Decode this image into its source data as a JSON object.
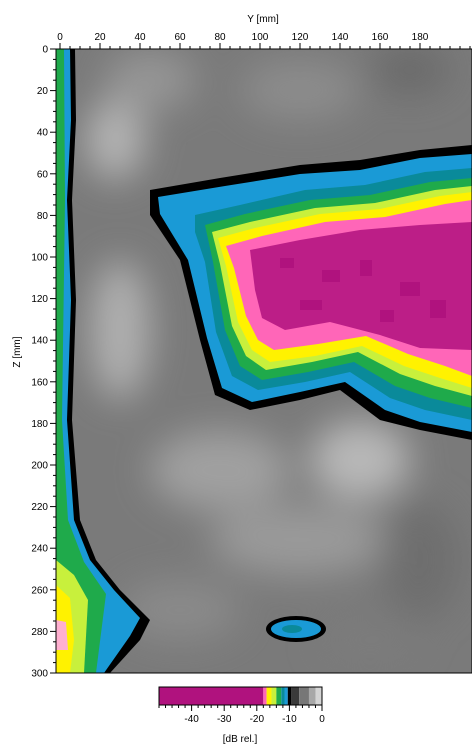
{
  "chart_data": {
    "type": "heatmap",
    "title": "",
    "xlabel": "Y [mm]",
    "ylabel": "Z [mm]",
    "x_axis_position": "top",
    "xlim": [
      0,
      200
    ],
    "ylim": [
      0,
      300
    ],
    "y_direction": "downward",
    "x_ticks": [
      0,
      20,
      40,
      60,
      80,
      100,
      120,
      140,
      160,
      180
    ],
    "y_ticks": [
      0,
      20,
      40,
      60,
      80,
      100,
      120,
      140,
      160,
      180,
      200,
      220,
      240,
      260,
      280,
      300
    ],
    "colorbar": {
      "label": "[dB rel.]",
      "range": [
        -50,
        0
      ],
      "ticks": [
        -40,
        -30,
        -20,
        -10,
        0
      ],
      "scale": [
        {
          "from": -50,
          "to": -18,
          "color": "#b0127e"
        },
        {
          "from": -18,
          "to": -17,
          "color": "#ff66b8"
        },
        {
          "from": -17,
          "to": -15.5,
          "color": "#fff200"
        },
        {
          "from": -15.5,
          "to": -14,
          "color": "#c8f03c"
        },
        {
          "from": -14,
          "to": -12.5,
          "color": "#1faa4b"
        },
        {
          "from": -12.5,
          "to": -11.5,
          "color": "#0a8a9a"
        },
        {
          "from": -11.5,
          "to": -10.5,
          "color": "#1a9ad6"
        },
        {
          "from": -10.5,
          "to": -9.5,
          "color": "#000000"
        },
        {
          "from": -9.5,
          "to": -7,
          "color": "#3a3a3a"
        },
        {
          "from": -7,
          "to": -4,
          "color": "#777777"
        },
        {
          "from": -4,
          "to": -2,
          "color": "#a8a8a8"
        },
        {
          "from": -2,
          "to": 0,
          "color": "#d4d4d4"
        }
      ]
    },
    "regions": [
      {
        "name": "high-intensity zone",
        "level_db": -22,
        "y_range": [
          70,
          200
        ],
        "z_range": [
          85,
          170
        ]
      },
      {
        "name": "left edge band",
        "level_db": -13,
        "y_range": [
          0,
          8
        ],
        "z_range": [
          0,
          300
        ]
      },
      {
        "name": "bottom-left hot spot",
        "level_db": -17,
        "y_range": [
          0,
          10
        ],
        "z_range": [
          250,
          300
        ]
      },
      {
        "name": "small spot",
        "level_db": -11,
        "y_range": [
          102,
          126
        ],
        "z_range": [
          276,
          286
        ]
      }
    ]
  }
}
